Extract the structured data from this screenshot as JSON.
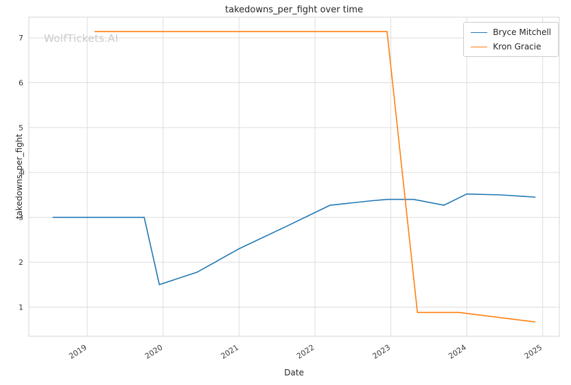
{
  "watermark": "WolfTickets.AI",
  "chart_data": {
    "type": "line",
    "title": "takedowns_per_fight over time",
    "xlabel": "Date",
    "ylabel": "takedowns_per_fight",
    "xlim": [
      2018.23,
      2025.22
    ],
    "ylim": [
      0.35,
      7.46
    ],
    "xticks": [
      2019,
      2020,
      2021,
      2022,
      2023,
      2024,
      2025
    ],
    "yticks": [
      1,
      2,
      3,
      4,
      5,
      6,
      7
    ],
    "grid": true,
    "grid_color": "#dddddd",
    "spine_color": "#d4d4d4",
    "legend_position": "upper right",
    "series": [
      {
        "name": "Bryce Mitchell",
        "color": "#1f77b4",
        "points": [
          [
            2018.55,
            3.0
          ],
          [
            2019.75,
            3.0
          ],
          [
            2019.95,
            1.5
          ],
          [
            2020.45,
            1.78
          ],
          [
            2021.0,
            2.3
          ],
          [
            2021.65,
            2.82
          ],
          [
            2022.2,
            3.27
          ],
          [
            2022.75,
            3.37
          ],
          [
            2022.95,
            3.4
          ],
          [
            2023.3,
            3.4
          ],
          [
            2023.7,
            3.27
          ],
          [
            2024.0,
            3.52
          ],
          [
            2024.45,
            3.5
          ],
          [
            2024.9,
            3.45
          ]
        ]
      },
      {
        "name": "Kron Gracie",
        "color": "#ff7f0e",
        "points": [
          [
            2019.1,
            7.14
          ],
          [
            2022.95,
            7.14
          ],
          [
            2023.35,
            0.88
          ],
          [
            2023.9,
            0.88
          ],
          [
            2024.9,
            0.67
          ]
        ]
      }
    ]
  }
}
